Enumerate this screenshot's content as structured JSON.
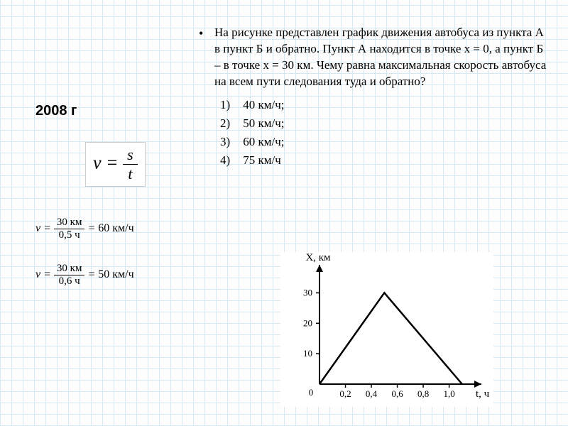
{
  "year": "2008 г",
  "formula_main": {
    "lhs": "v",
    "num": "s",
    "den": "t"
  },
  "formula_calc1": {
    "lhs": "v",
    "num": "30 км",
    "den": "0,5 ч",
    "rhs": "60 км/ч"
  },
  "formula_calc2": {
    "lhs": "v",
    "num": "30 км",
    "den": "0,6 ч",
    "rhs": "50 км/ч"
  },
  "problem_text": "На рисунке представлен график движения автобуса из пункта А в пункт Б и обратно. Пункт А находится в точке х = 0, а пункт Б – в точке х = 30 км. Чему равна максимальная скорость автобуса на всем пути следования туда и обратно?",
  "answers": [
    {
      "n": "1)",
      "text": "40 км/ч;"
    },
    {
      "n": "2)",
      "text": "50 км/ч;"
    },
    {
      "n": "3)",
      "text": "60 км/ч;"
    },
    {
      "n": "4)",
      "text": "75 км/ч"
    }
  ],
  "chart": {
    "type": "line",
    "x_label": "t, ч",
    "y_label": "X, км",
    "x_ticks": [
      "0,2",
      "0,4",
      "0,6",
      "0,8",
      "1,0"
    ],
    "y_ticks": [
      "10",
      "20",
      "30"
    ],
    "points": [
      [
        0,
        0
      ],
      [
        0.5,
        30
      ],
      [
        1.1,
        0
      ]
    ],
    "xlim": [
      0,
      1.15
    ],
    "ylim": [
      0,
      35
    ],
    "line_color": "#000000",
    "line_width": 2.5,
    "bg_color": "#ffffff",
    "axis_color": "#000000",
    "axis_width": 2,
    "tick_fontsize": 13,
    "label_fontsize": 15
  }
}
